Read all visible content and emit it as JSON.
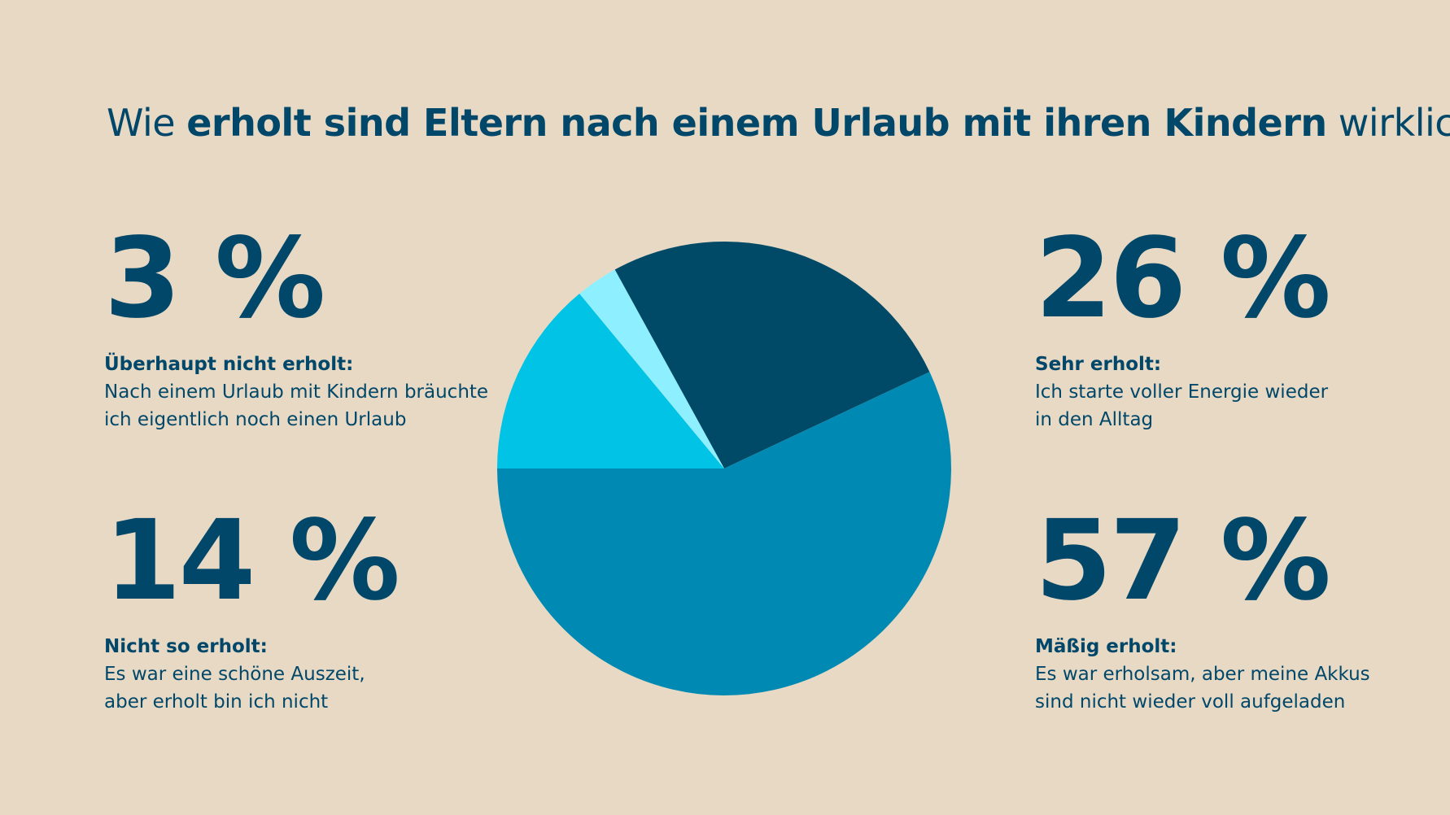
{
  "title": {
    "pre": "Wie ",
    "bold": "erholt sind Eltern nach einem Urlaub mit ihren Kindern",
    "post": " wirklich?"
  },
  "chart_data": {
    "type": "pie",
    "title": "Wie erholt sind Eltern nach einem Urlaub mit ihren Kindern wirklich?",
    "slices": [
      {
        "label": "Sehr erholt",
        "value": 26,
        "display": "26 %",
        "color": "#004a68",
        "description": "Ich starte voller Energie wieder in den Alltag"
      },
      {
        "label": "Mäßig erholt",
        "value": 57,
        "display": "57 %",
        "color": "#008ab3",
        "description": "Es war erholsam, aber meine Akkus sind nicht wieder voll aufgeladen"
      },
      {
        "label": "Nicht so erholt",
        "value": 14,
        "display": "14 %",
        "color": "#00c3e5",
        "description": "Es war eine schöne Auszeit, aber erholt bin ich nicht"
      },
      {
        "label": "Überhaupt nicht erholt",
        "value": 3,
        "display": "3 %",
        "color": "#8ef0ff",
        "description": "Nach einem Urlaub mit Kindern bräuchte ich eigentlich noch einen Urlaub"
      }
    ]
  },
  "stats": {
    "s3": {
      "num": "3 %",
      "label": "Überhaupt nicht erholt:",
      "l1": "Nach einem Urlaub mit Kindern bräuchte",
      "l2": "ich eigentlich noch einen Urlaub"
    },
    "s14": {
      "num": "14 %",
      "label": "Nicht so erholt:",
      "l1": "Es war eine schöne Auszeit,",
      "l2": "aber erholt bin ich nicht"
    },
    "s26": {
      "num": "26 %",
      "label": "Sehr erholt:",
      "l1": "Ich starte voller Energie wieder",
      "l2": "in den Alltag"
    },
    "s57": {
      "num": "57 %",
      "label": "Mäßig erholt:",
      "l1": "Es war erholsam, aber meine Akkus",
      "l2": "sind nicht wieder voll aufgeladen"
    }
  }
}
